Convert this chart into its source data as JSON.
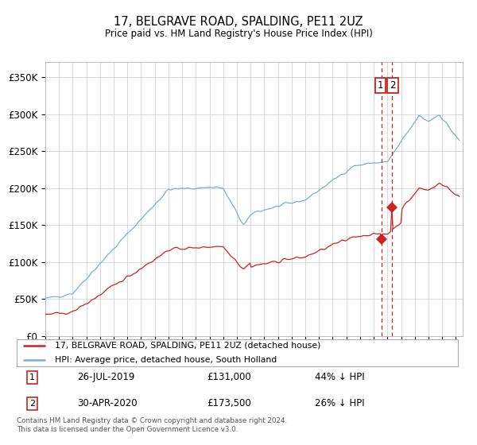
{
  "title": "17, BELGRAVE ROAD, SPALDING, PE11 2UZ",
  "subtitle": "Price paid vs. HM Land Registry's House Price Index (HPI)",
  "hpi_color": "#7aaed6",
  "price_color": "#cc2222",
  "ylim": [
    0,
    370000
  ],
  "yticks": [
    0,
    50000,
    100000,
    150000,
    200000,
    250000,
    300000,
    350000
  ],
  "ytick_labels": [
    "£0",
    "£50K",
    "£100K",
    "£150K",
    "£200K",
    "£250K",
    "£300K",
    "£350K"
  ],
  "xlim_start": 1995.0,
  "xlim_end": 2025.5,
  "sale1_x": 2019.57,
  "sale1_y": 131000,
  "sale1_hpi_y": 234000,
  "sale1_label": "26-JUL-2019",
  "sale1_price": "£131,000",
  "sale1_pct": "44% ↓ HPI",
  "sale2_x": 2020.33,
  "sale2_y": 173500,
  "sale2_hpi_y": 235000,
  "sale2_label": "30-APR-2020",
  "sale2_price": "£173,500",
  "sale2_pct": "26% ↓ HPI",
  "legend_line1": "17, BELGRAVE ROAD, SPALDING, PE11 2UZ (detached house)",
  "legend_line2": "HPI: Average price, detached house, South Holland",
  "footer": "Contains HM Land Registry data © Crown copyright and database right 2024.\nThis data is licensed under the Open Government Licence v3.0.",
  "background_color": "#ffffff",
  "grid_color": "#cccccc"
}
